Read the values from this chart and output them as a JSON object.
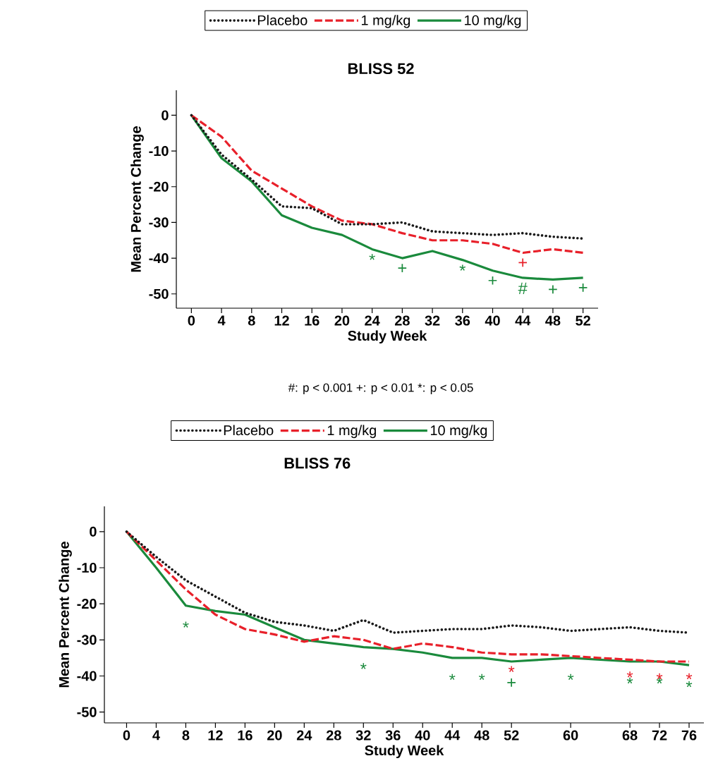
{
  "chart_data": [
    {
      "type": "line",
      "title": "BLISS 52",
      "xlabel": "Study Week",
      "ylabel": "Mean Percent Change",
      "legend": "top",
      "x": [
        0,
        4,
        8,
        12,
        16,
        20,
        24,
        28,
        32,
        36,
        40,
        44,
        48,
        52
      ],
      "xlim": [
        -2,
        54
      ],
      "xticks": [
        0,
        4,
        8,
        12,
        16,
        20,
        24,
        28,
        32,
        36,
        40,
        44,
        48,
        52
      ],
      "ylim": [
        -54,
        7
      ],
      "yticks": [
        -50,
        -40,
        -30,
        -20,
        -10,
        0
      ],
      "series": [
        {
          "name": "Placebo",
          "color": "#1a1a1a",
          "line_style": "dotted",
          "values": [
            0,
            -11,
            -18,
            -25.5,
            -26,
            -30.5,
            -30.5,
            -30,
            -32.5,
            -33,
            -33.5,
            -33,
            -34,
            -34.5
          ]
        },
        {
          "name": "1 mg/kg",
          "color": "#e8202a",
          "line_style": "dashed",
          "values": [
            0,
            -6,
            -15.5,
            -20.5,
            -25.5,
            -29.5,
            -30.5,
            -33,
            -35,
            -35,
            -36,
            -38.5,
            -37.5,
            -38.5
          ],
          "value_labels": [
            null,
            null,
            null,
            null,
            null,
            null,
            null,
            null,
            null,
            null,
            null,
            "+",
            null,
            null
          ]
        },
        {
          "name": "10 mg/kg",
          "color": "#1a8a3c",
          "line_style": "solid",
          "values": [
            0,
            -12,
            -18.5,
            -28,
            -31.5,
            -33.5,
            -37.5,
            -40,
            -38,
            -40.5,
            -43.5,
            -45.5,
            -46,
            -45.5
          ],
          "value_labels": [
            null,
            null,
            null,
            null,
            null,
            null,
            "*",
            "+",
            null,
            "*",
            "+",
            "#",
            "+",
            "+"
          ]
        }
      ],
      "annotations": [
        "#: p < 0.001  +: p < 0.01  *: p < 0.05"
      ]
    },
    {
      "type": "line",
      "title": "BLISS 76",
      "xlabel": "Study Week",
      "ylabel": "Mean Percent Change",
      "legend": "top",
      "x": [
        0,
        4,
        8,
        12,
        16,
        20,
        24,
        28,
        32,
        36,
        40,
        44,
        48,
        52,
        56,
        60,
        64,
        68,
        72,
        76
      ],
      "xlim": [
        -3,
        78
      ],
      "xticks": [
        0,
        4,
        8,
        12,
        16,
        20,
        24,
        28,
        32,
        36,
        40,
        44,
        48,
        52,
        60,
        68,
        72,
        76
      ],
      "ylim": [
        -53,
        7
      ],
      "yticks": [
        -50,
        -40,
        -30,
        -20,
        -10,
        0
      ],
      "series": [
        {
          "name": "Placebo",
          "color": "#1a1a1a",
          "line_style": "dotted",
          "values": [
            0,
            -7,
            -13.5,
            -18,
            -22.5,
            -25,
            -26,
            -27.5,
            -24.5,
            -28,
            -27.5,
            -27,
            -27,
            -26,
            -26.5,
            -27.5,
            -27,
            -26.5,
            -27.5,
            -28
          ]
        },
        {
          "name": "1 mg/kg",
          "color": "#e8202a",
          "line_style": "dashed",
          "values": [
            0,
            -8,
            -16,
            -23,
            -27,
            -28.5,
            -30.5,
            -29,
            -30,
            -32.5,
            -31,
            -32,
            -33.5,
            -34,
            -34,
            -34.5,
            -35,
            -35.5,
            -36,
            -36
          ],
          "value_labels": [
            null,
            null,
            null,
            null,
            null,
            null,
            null,
            null,
            null,
            null,
            null,
            null,
            null,
            "*",
            null,
            null,
            null,
            "*",
            "*",
            "*"
          ]
        },
        {
          "name": "10 mg/kg",
          "color": "#1a8a3c",
          "line_style": "solid",
          "values": [
            0,
            -10,
            -20.5,
            -22,
            -23,
            -26.5,
            -30,
            -31,
            -32,
            -32.5,
            -33.5,
            -35,
            -35,
            -36,
            -35.5,
            -35,
            -35.5,
            -36,
            -36,
            -37
          ],
          "value_labels": [
            null,
            null,
            "*",
            null,
            null,
            null,
            null,
            null,
            "*",
            null,
            null,
            "*",
            "*",
            "+",
            null,
            "*",
            null,
            "*",
            "*",
            "*"
          ]
        }
      ]
    }
  ]
}
